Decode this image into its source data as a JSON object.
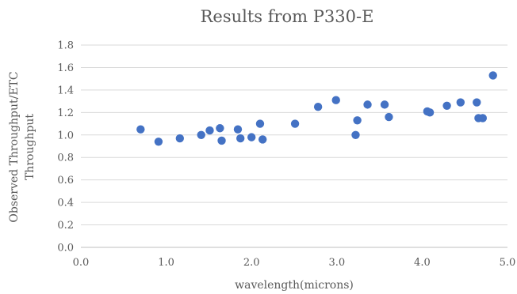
{
  "chart_data": {
    "type": "scatter",
    "title": "Results from P330-E",
    "xlabel": "wavelength(microns)",
    "ylabel_lines": [
      "Observed Throughput/ETC",
      "Throughput"
    ],
    "xlim": [
      0,
      5
    ],
    "ylim": [
      0,
      1.8
    ],
    "x_ticks": [
      "0.0",
      "1.0",
      "2.0",
      "3.0",
      "4.0",
      "5.0"
    ],
    "y_ticks": [
      "0.0",
      "0.2",
      "0.4",
      "0.6",
      "0.8",
      "1.0",
      "1.2",
      "1.4",
      "1.6",
      "1.8"
    ],
    "grid": "horizontal",
    "legend": "none",
    "marker_color": "#4472c4",
    "points": [
      {
        "x": 0.7,
        "y": 1.05
      },
      {
        "x": 0.91,
        "y": 0.94
      },
      {
        "x": 1.16,
        "y": 0.97
      },
      {
        "x": 1.41,
        "y": 1.0
      },
      {
        "x": 1.51,
        "y": 1.04
      },
      {
        "x": 1.63,
        "y": 1.06
      },
      {
        "x": 1.65,
        "y": 0.95
      },
      {
        "x": 1.84,
        "y": 1.05
      },
      {
        "x": 1.87,
        "y": 0.97
      },
      {
        "x": 2.0,
        "y": 0.98
      },
      {
        "x": 2.1,
        "y": 1.1
      },
      {
        "x": 2.13,
        "y": 0.96
      },
      {
        "x": 2.51,
        "y": 1.1
      },
      {
        "x": 2.78,
        "y": 1.25
      },
      {
        "x": 2.99,
        "y": 1.31
      },
      {
        "x": 3.22,
        "y": 1.0
      },
      {
        "x": 3.24,
        "y": 1.13
      },
      {
        "x": 3.36,
        "y": 1.27
      },
      {
        "x": 3.56,
        "y": 1.27
      },
      {
        "x": 3.61,
        "y": 1.16
      },
      {
        "x": 4.06,
        "y": 1.21
      },
      {
        "x": 4.09,
        "y": 1.2
      },
      {
        "x": 4.29,
        "y": 1.26
      },
      {
        "x": 4.45,
        "y": 1.29
      },
      {
        "x": 4.64,
        "y": 1.29
      },
      {
        "x": 4.66,
        "y": 1.15
      },
      {
        "x": 4.71,
        "y": 1.15
      },
      {
        "x": 4.83,
        "y": 1.53
      }
    ]
  }
}
